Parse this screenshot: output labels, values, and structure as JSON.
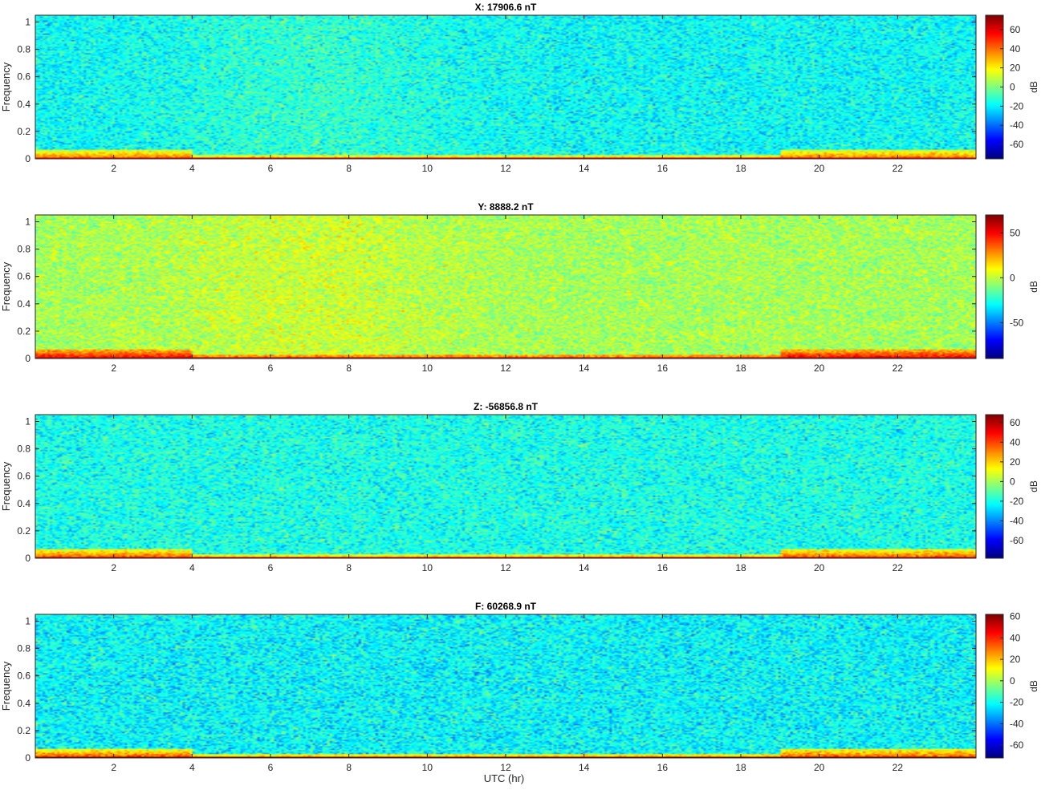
{
  "figure": {
    "xlabel": "UTC (hr)"
  },
  "chart_data": [
    {
      "type": "heatmap",
      "title": "X: 17906.6 nT",
      "ylabel": "Frequency",
      "xlim": [
        0,
        24
      ],
      "ylim": [
        0,
        1.05
      ],
      "xticks": [
        2,
        4,
        6,
        8,
        10,
        12,
        14,
        16,
        18,
        20,
        22
      ],
      "yticks": [
        0,
        0.2,
        0.4,
        0.6,
        0.8,
        1
      ],
      "colorbar": {
        "label": "dB",
        "clim": [
          -75,
          75
        ],
        "ticks": [
          -60,
          -40,
          -20,
          0,
          20,
          40,
          60
        ]
      },
      "colormap": "jet",
      "background_level_db": -18,
      "low_freq_band_db": 60
    },
    {
      "type": "heatmap",
      "title": "Y: 8888.2 nT",
      "ylabel": "Frequency",
      "xlim": [
        0,
        24
      ],
      "ylim": [
        0,
        1.05
      ],
      "xticks": [
        2,
        4,
        6,
        8,
        10,
        12,
        14,
        16,
        18,
        20,
        22
      ],
      "yticks": [
        0,
        0.2,
        0.4,
        0.6,
        0.8,
        1
      ],
      "colorbar": {
        "label": "dB",
        "clim": [
          -90,
          70
        ],
        "ticks": [
          -50,
          0,
          50
        ]
      },
      "colormap": "jet",
      "background_level_db": -8,
      "low_freq_band_db": 60
    },
    {
      "type": "heatmap",
      "title": "Z: -56856.8 nT",
      "ylabel": "Frequency",
      "xlim": [
        0,
        24
      ],
      "ylim": [
        0,
        1.05
      ],
      "xticks": [
        2,
        4,
        6,
        8,
        10,
        12,
        14,
        16,
        18,
        20,
        22
      ],
      "yticks": [
        0,
        0.2,
        0.4,
        0.6,
        0.8,
        1
      ],
      "colorbar": {
        "label": "dB",
        "clim": [
          -78,
          68
        ],
        "ticks": [
          -60,
          -40,
          -20,
          0,
          20,
          40,
          60
        ]
      },
      "colormap": "jet",
      "background_level_db": -20,
      "low_freq_band_db": 58
    },
    {
      "type": "heatmap",
      "title": "F: 60268.9 nT",
      "ylabel": "Frequency",
      "xlim": [
        0,
        24
      ],
      "ylim": [
        0,
        1.05
      ],
      "xticks": [
        2,
        4,
        6,
        8,
        10,
        12,
        14,
        16,
        18,
        20,
        22
      ],
      "yticks": [
        0,
        0.2,
        0.4,
        0.6,
        0.8,
        1
      ],
      "colorbar": {
        "label": "dB",
        "clim": [
          -72,
          62
        ],
        "ticks": [
          -60,
          -40,
          -20,
          0,
          20,
          40,
          60
        ]
      },
      "colormap": "jet",
      "background_level_db": -22,
      "low_freq_band_db": 58
    }
  ]
}
